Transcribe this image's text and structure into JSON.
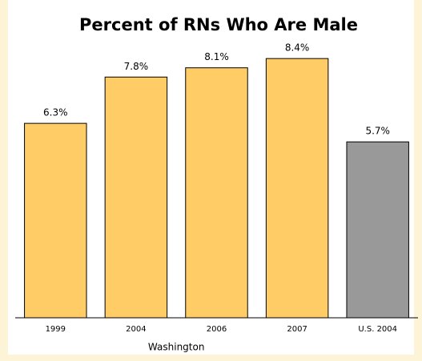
{
  "chart_data": {
    "type": "bar",
    "title": "Percent of RNs Who Are Male",
    "categories": [
      "1999",
      "2004",
      "2006",
      "2007",
      "U.S. 2004"
    ],
    "values": [
      6.3,
      7.8,
      8.1,
      8.4,
      5.7
    ],
    "value_labels": [
      "6.3%",
      "7.8%",
      "8.1%",
      "8.4%",
      "5.7%"
    ],
    "colors": [
      "#ffcc66",
      "#ffcc66",
      "#ffcc66",
      "#ffcc66",
      "#999999"
    ],
    "annotation": "Washington",
    "ylim": [
      0,
      9
    ]
  }
}
